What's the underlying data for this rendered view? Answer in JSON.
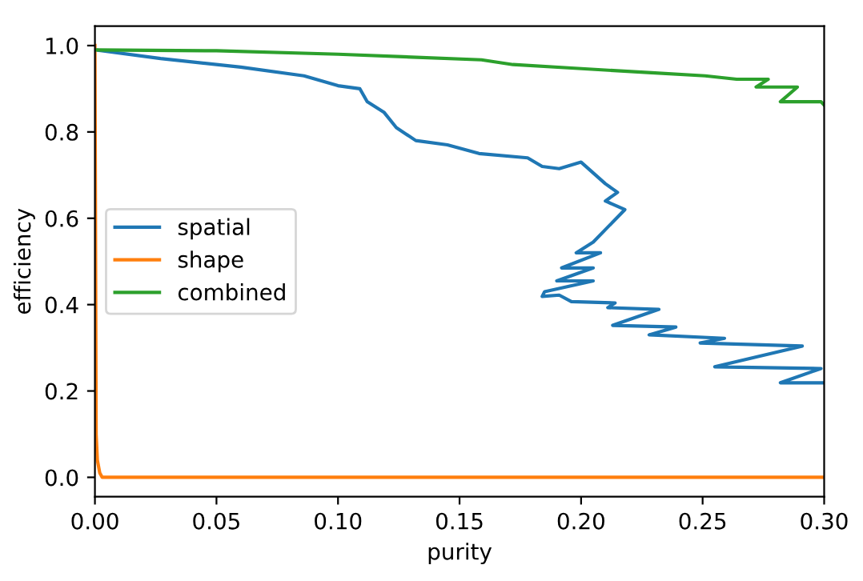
{
  "chart_data": {
    "type": "line",
    "xlabel": "purity",
    "ylabel": "efficiency",
    "xlim": [
      0,
      0.3
    ],
    "ylim": [
      -0.045,
      1.045
    ],
    "xticks": [
      {
        "value": 0,
        "label": "0.00"
      },
      0.05,
      {
        "value": 0.1,
        "label": "0.10"
      },
      0.15,
      {
        "value": 0.2,
        "label": "0.20"
      },
      0.25,
      {
        "value": 0.3,
        "label": "0.30"
      }
    ],
    "yticks": [
      {
        "value": 0,
        "label": "0.0"
      },
      0.2,
      0.4,
      0.6,
      0.8,
      {
        "value": 1,
        "label": "1.0"
      }
    ],
    "legend": "center left",
    "grid": false,
    "series": [
      {
        "name": "spatial",
        "color": "#1f77b4",
        "x": [
          0,
          0.027,
          0.06,
          0.086,
          0.1,
          0.109,
          0.112,
          0.119,
          0.124,
          0.132,
          0.145,
          0.158,
          0.178,
          0.184,
          0.191,
          0.2,
          0.21,
          0.215,
          0.21,
          0.218,
          0.205,
          0.198,
          0.208,
          0.192,
          0.205,
          0.19,
          0.205,
          0.185,
          0.184,
          0.191,
          0.196,
          0.214,
          0.211,
          0.232,
          0.213,
          0.239,
          0.228,
          0.259,
          0.249,
          0.291,
          0.255,
          0.2987,
          0.282,
          0.3
        ],
        "values": [
          0.99,
          0.97,
          0.95,
          0.93,
          0.907,
          0.9,
          0.87,
          0.845,
          0.81,
          0.78,
          0.77,
          0.75,
          0.74,
          0.72,
          0.715,
          0.73,
          0.68,
          0.66,
          0.64,
          0.62,
          0.545,
          0.52,
          0.52,
          0.485,
          0.485,
          0.455,
          0.455,
          0.43,
          0.419,
          0.422,
          0.407,
          0.404,
          0.393,
          0.389,
          0.352,
          0.348,
          0.33,
          0.322,
          0.311,
          0.304,
          0.256,
          0.252,
          0.219,
          0.219
        ]
      },
      {
        "name": "shape",
        "color": "#ff7f0e",
        "x": [
          0,
          0.0005,
          0.001,
          0.002,
          0.003,
          0.3
        ],
        "values": [
          1.0,
          0.1,
          0.04,
          0.01,
          0,
          0
        ]
      },
      {
        "name": "combined",
        "color": "#2ca02c",
        "x": [
          0,
          0.05,
          0.1,
          0.159,
          0.172,
          0.196,
          0.229,
          0.251,
          0.264,
          0.277,
          0.272,
          0.289,
          0.282,
          0.2987,
          0.3
        ],
        "values": [
          0.99,
          0.988,
          0.98,
          0.967,
          0.956,
          0.948,
          0.937,
          0.93,
          0.922,
          0.922,
          0.904,
          0.904,
          0.87,
          0.87,
          0.862
        ]
      }
    ]
  }
}
